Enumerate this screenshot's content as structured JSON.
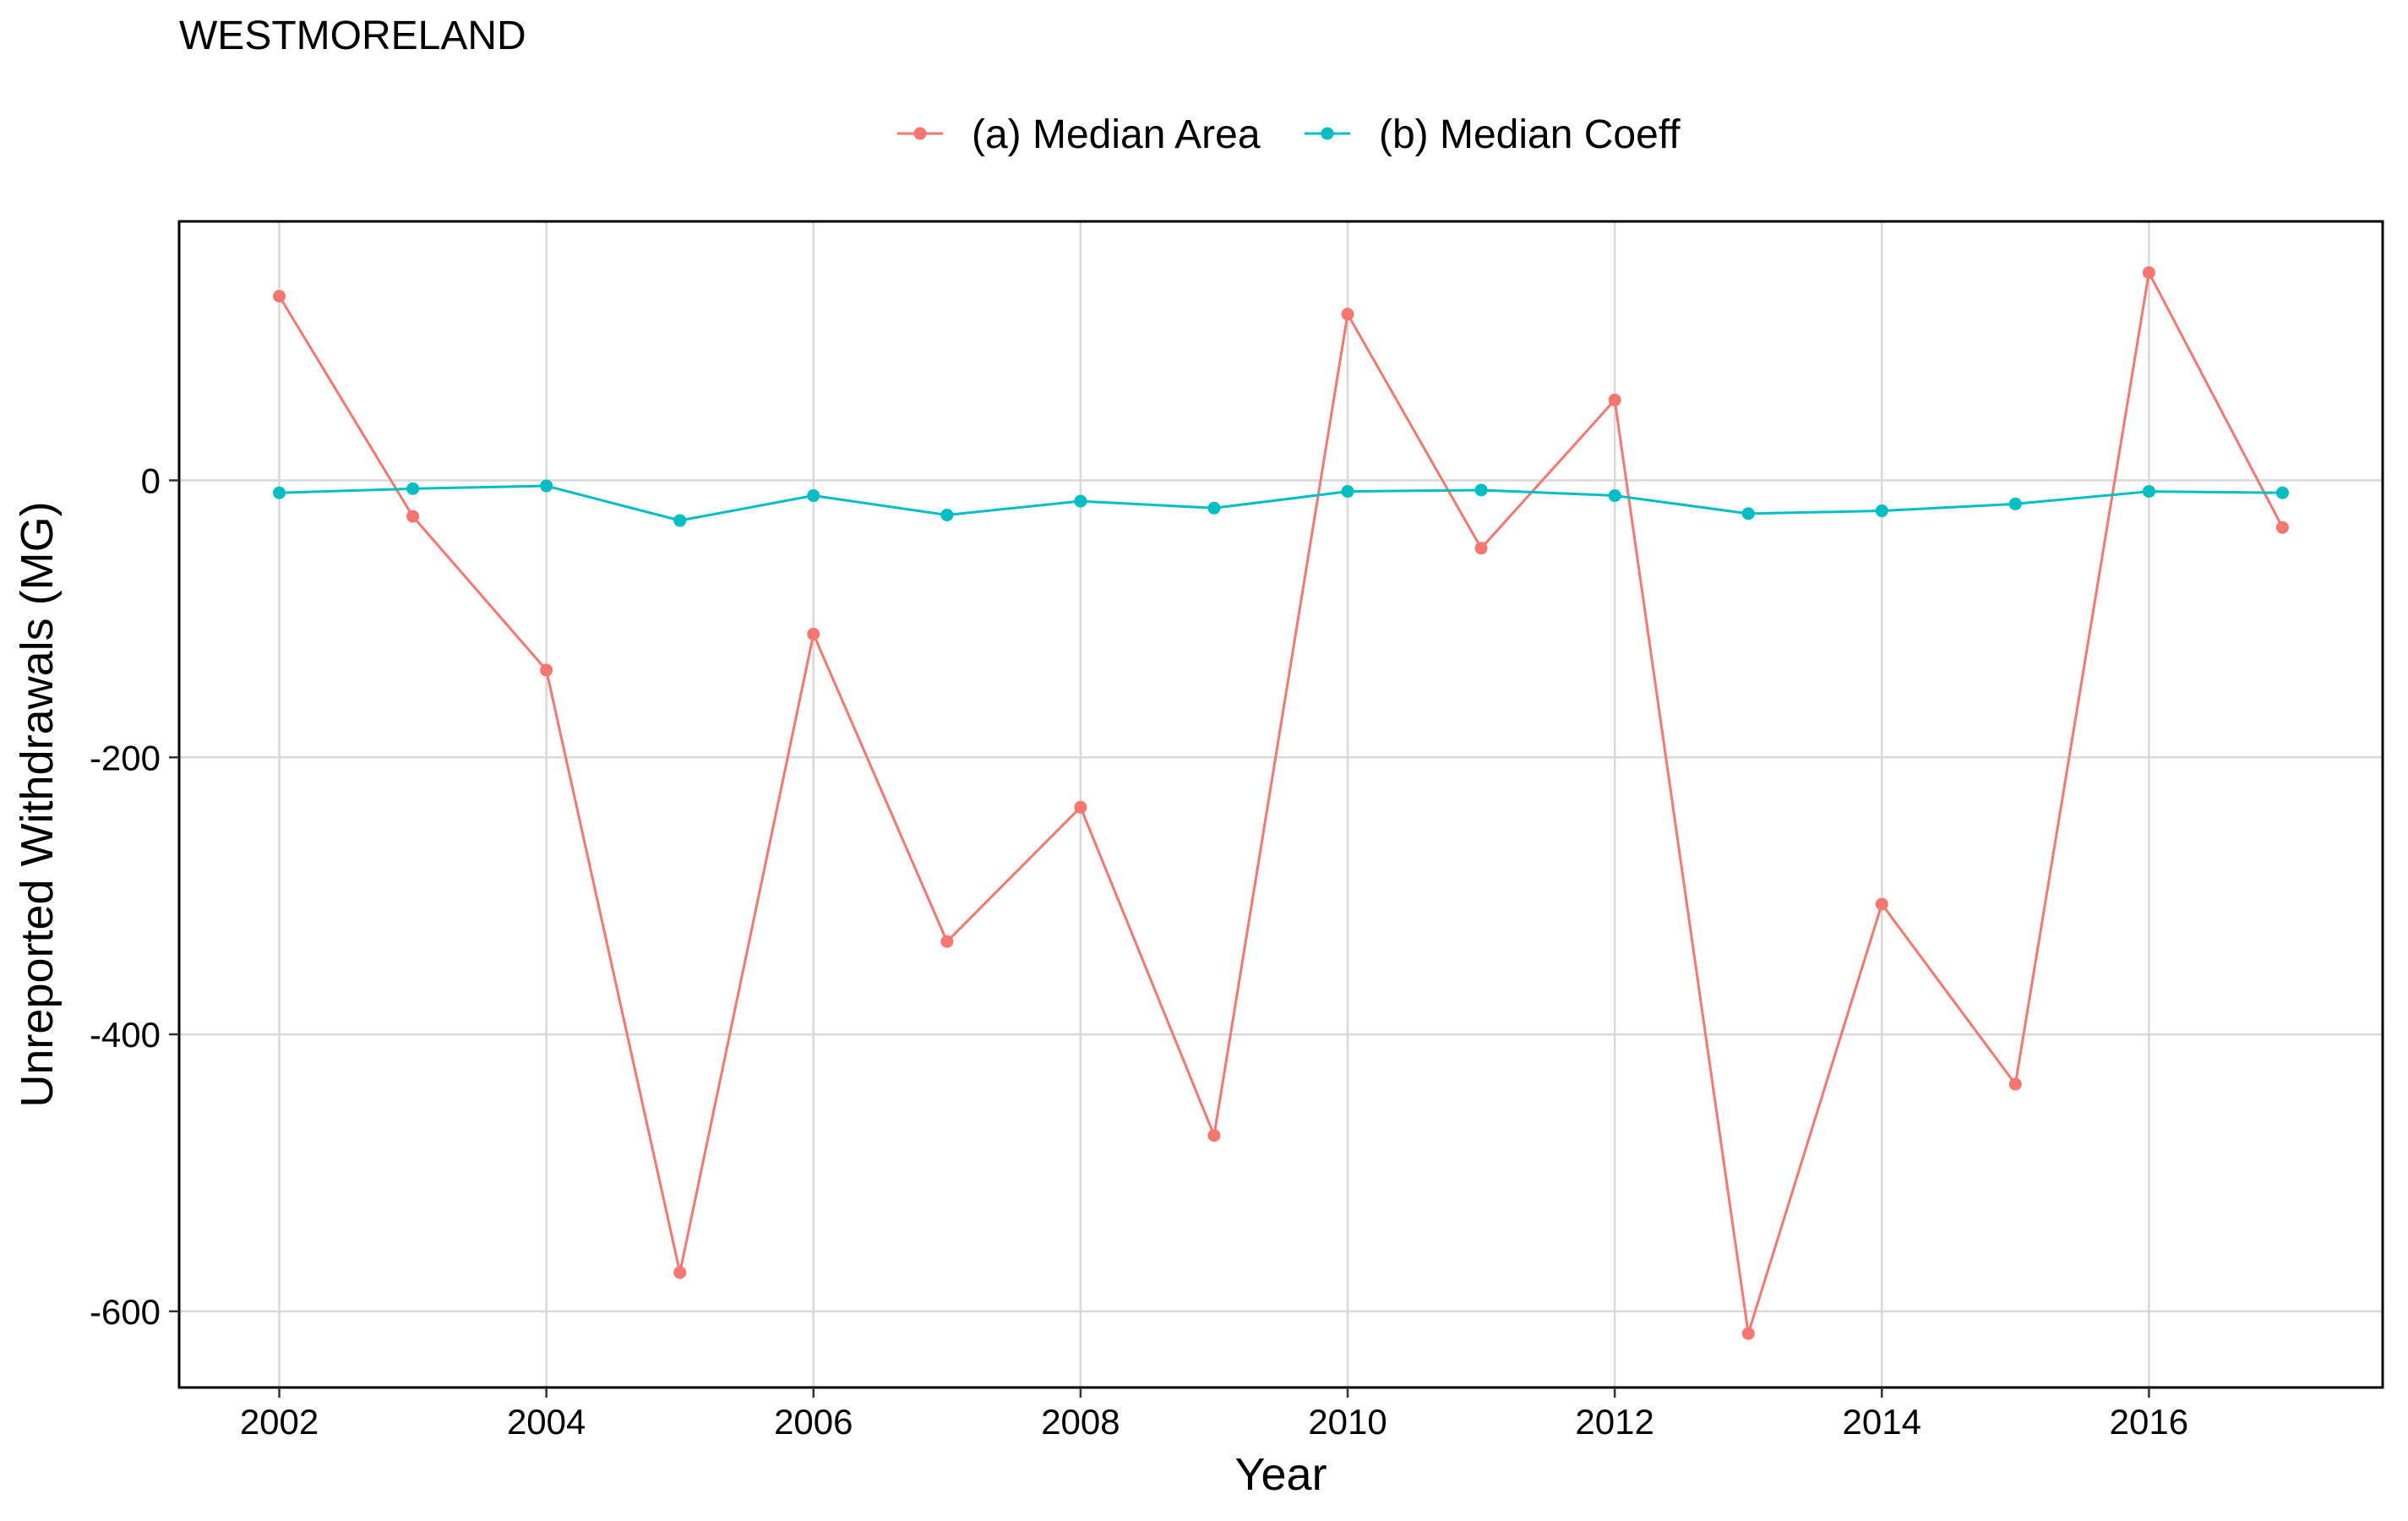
{
  "chart_data": {
    "type": "line",
    "title": "WESTMORELAND",
    "xlabel": "Year",
    "ylabel": "Unreported Withdrawals (MG)",
    "xlim": [
      2001.25,
      2017.75
    ],
    "ylim": [
      -655,
      187
    ],
    "x_ticks": [
      2002,
      2004,
      2006,
      2008,
      2010,
      2012,
      2014,
      2016
    ],
    "x_tick_labels": [
      "2002",
      "2004",
      "2006",
      "2008",
      "2010",
      "2012",
      "2014",
      "2016"
    ],
    "y_ticks": [
      0,
      -200,
      -400,
      -600
    ],
    "y_tick_labels": [
      "0",
      "-200",
      "-400",
      "-600"
    ],
    "grid": true,
    "legend_position": "top",
    "series": [
      {
        "name": "(a) Median Area",
        "color": "#F8766D",
        "x": [
          2002,
          2003,
          2004,
          2005,
          2006,
          2007,
          2008,
          2009,
          2010,
          2011,
          2012,
          2013,
          2014,
          2015,
          2016,
          2017
        ],
        "values": [
          133,
          -26,
          -137,
          -572,
          -111,
          -333,
          -236,
          -473,
          120,
          -49,
          58,
          -616,
          -306,
          -436,
          150,
          -34
        ]
      },
      {
        "name": "(b) Median Coeff",
        "color": "#00BFC4",
        "x": [
          2002,
          2003,
          2004,
          2005,
          2006,
          2007,
          2008,
          2009,
          2010,
          2011,
          2012,
          2013,
          2014,
          2015,
          2016,
          2017
        ],
        "values": [
          -9,
          -6,
          -4,
          -29,
          -11,
          -25,
          -15,
          -20,
          -8,
          -7,
          -11,
          -24,
          -22,
          -17,
          -8,
          -9
        ]
      }
    ]
  }
}
